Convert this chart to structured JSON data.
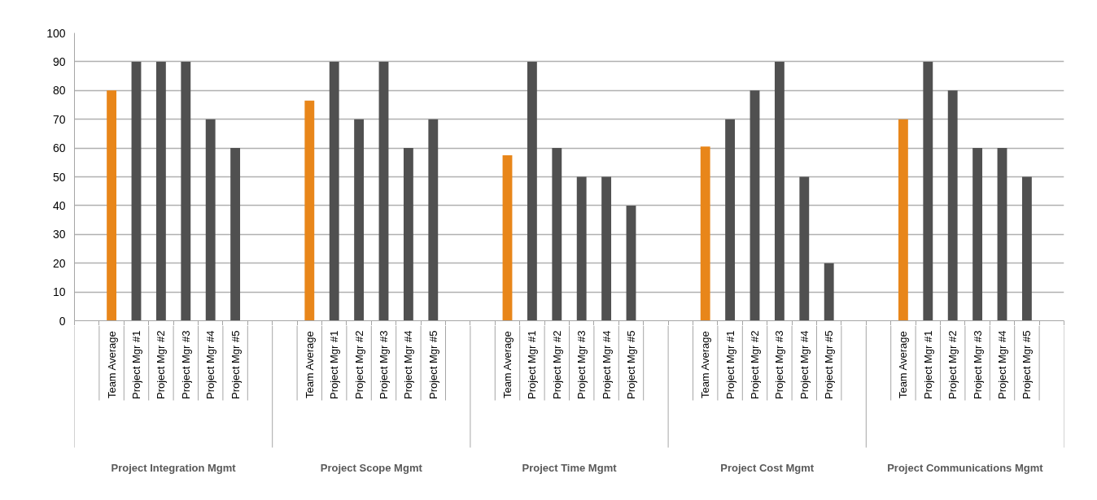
{
  "chart_data": {
    "type": "bar",
    "categories": [
      null,
      "Team Average",
      "Project Mgr #1",
      "Project Mgr #2",
      "Project Mgr #3",
      "Project Mgr #4",
      "Project Mgr #5",
      null,
      null,
      "Team Average",
      "Project Mgr #1",
      "Project Mgr #2",
      "Project Mgr #3",
      "Project Mgr #4",
      "Project Mgr #5",
      null,
      null,
      "Team Average",
      "Project Mgr #1",
      "Project Mgr #2",
      "Project Mgr #3",
      "Project Mgr #4",
      "Project Mgr #5",
      null,
      null,
      "Team Average",
      "Project Mgr #1",
      "Project Mgr #2",
      "Project Mgr #3",
      "Project Mgr #4",
      "Project Mgr #5",
      null,
      null,
      "Team Average",
      "Project Mgr #1",
      "Project Mgr #2",
      "Project Mgr #3",
      "Project Mgr #4",
      "Project Mgr #5",
      null
    ],
    "values": [
      null,
      80,
      90,
      90,
      90,
      70,
      60,
      null,
      null,
      76.5,
      90,
      70,
      90,
      60,
      70,
      null,
      null,
      57.5,
      90,
      60,
      50,
      50,
      40,
      null,
      null,
      60.5,
      70,
      80,
      90,
      50,
      20,
      null,
      null,
      70,
      90,
      80,
      60,
      60,
      50,
      null
    ],
    "colors": [
      "#505050",
      "#e8861a",
      "#505050",
      "#505050",
      "#505050",
      "#505050",
      "#505050",
      "#505050",
      "#505050",
      "#e8861a",
      "#505050",
      "#505050",
      "#505050",
      "#505050",
      "#505050",
      "#505050",
      "#505050",
      "#e8861a",
      "#505050",
      "#505050",
      "#505050",
      "#505050",
      "#505050",
      "#505050",
      "#505050",
      "#e8861a",
      "#505050",
      "#505050",
      "#505050",
      "#505050",
      "#505050",
      "#505050",
      "#505050",
      "#e8861a",
      "#505050",
      "#505050",
      "#505050",
      "#505050",
      "#505050",
      "#505050"
    ],
    "annotations": [
      "Project Integration Mgmt",
      "Project Scope Mgmt",
      "Project Time Mgmt",
      "Project Cost Mgmt",
      "Project Communications Mgmt"
    ],
    "ylim": [
      0,
      100
    ],
    "yticks": [
      0,
      10,
      20,
      30,
      40,
      50,
      60,
      70,
      80,
      90,
      100
    ],
    "grid": "y",
    "tick_labels": "y"
  }
}
